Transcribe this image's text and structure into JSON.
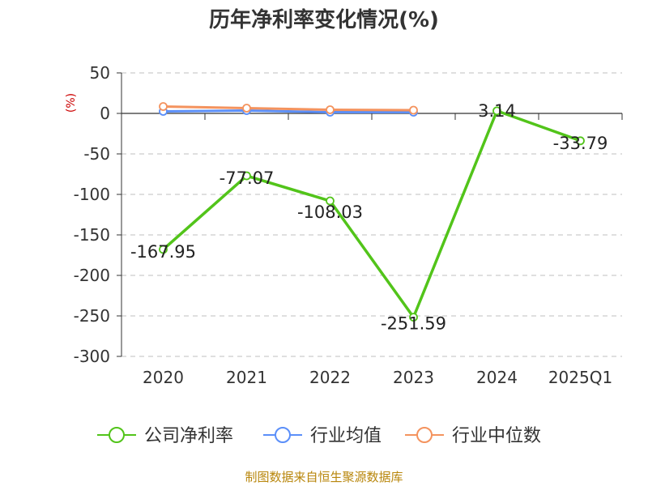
{
  "chart_data": {
    "type": "line",
    "title": "历年净利率变化情况(%)",
    "unit_label": "(%)",
    "categories": [
      "2020",
      "2021",
      "2022",
      "2023",
      "2024",
      "2025Q1"
    ],
    "ylim": [
      -300,
      50
    ],
    "yticks": [
      50,
      0,
      -50,
      -100,
      -150,
      -200,
      -250,
      -300
    ],
    "ytick_labels": [
      "50",
      "0",
      "-50",
      "-100",
      "-150",
      "-200",
      "-250",
      "-300"
    ],
    "grid": true,
    "legend_position": "bottom",
    "series": [
      {
        "name": "公司净利率",
        "color": "#52c41a",
        "values": [
          -167.95,
          -77.07,
          -108.03,
          -251.59,
          3.14,
          -33.79
        ],
        "labels": [
          "-167.95",
          "-77.07",
          "-108.03",
          "-251.59",
          "3.14",
          "-33.79"
        ]
      },
      {
        "name": "行业均值",
        "color": "#5b8ff9",
        "values": [
          2.5,
          3.5,
          1.5,
          1.5,
          null,
          null
        ]
      },
      {
        "name": "行业中位数",
        "color": "#f4935e",
        "values": [
          8.5,
          6.5,
          4.5,
          4.0,
          null,
          null
        ]
      }
    ]
  },
  "footer": {
    "source": "制图数据来自恒生聚源数据库"
  }
}
